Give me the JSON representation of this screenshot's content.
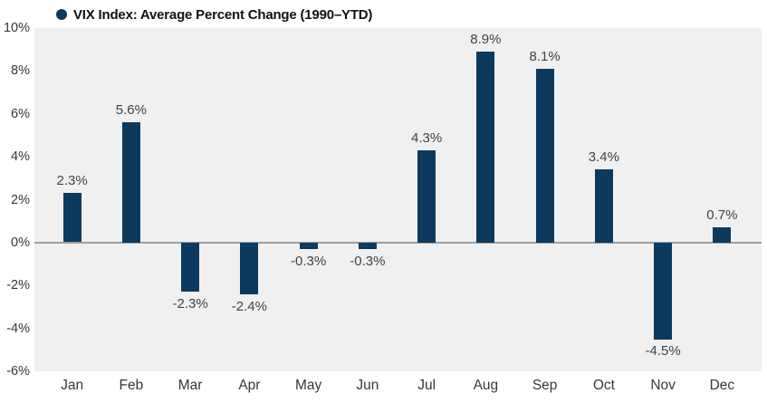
{
  "chart_data": {
    "type": "bar",
    "title": "VIX Index: Average Percent Change (1990–YTD)",
    "categories": [
      "Jan",
      "Feb",
      "Mar",
      "Apr",
      "May",
      "Jun",
      "Jul",
      "Aug",
      "Sep",
      "Oct",
      "Nov",
      "Dec"
    ],
    "values": [
      2.3,
      5.6,
      -2.3,
      -2.4,
      -0.3,
      -0.3,
      4.3,
      8.9,
      8.1,
      3.4,
      -4.5,
      0.7
    ],
    "value_labels": [
      "2.3%",
      "5.6%",
      "-2.3%",
      "-2.4%",
      "-0.3%",
      "-0.3%",
      "4.3%",
      "8.9%",
      "8.1%",
      "3.4%",
      "-4.5%",
      "0.7%"
    ],
    "xlabel": "",
    "ylabel": "",
    "ylim": [
      -6,
      10
    ],
    "ytick_step": 2,
    "ytick_labels": [
      "10%",
      "8%",
      "6%",
      "4%",
      "2%",
      "0%",
      "-2%",
      "-4%",
      "-6%"
    ],
    "ytick_values": [
      10,
      8,
      6,
      4,
      2,
      0,
      -2,
      -4,
      -6
    ],
    "grid": false,
    "legend_position": "top-left",
    "legend_marker": "circle",
    "colors": {
      "bar": "#0c3a5e",
      "legend_dot": "#0c3a5e",
      "plot_background": "#f0f0f1",
      "zero_line": "#9b9ea3",
      "value_label_text": "#3f4347",
      "axis_tick_text": "#34383d",
      "title_text": "#111111",
      "page_background": "#ffffff"
    }
  }
}
